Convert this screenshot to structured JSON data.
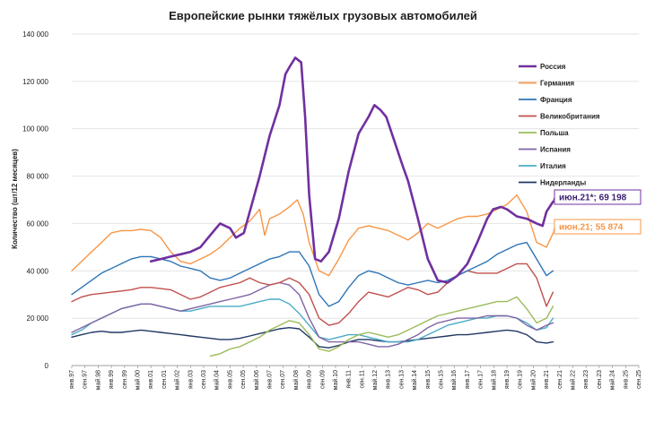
{
  "chart_data": {
    "type": "line",
    "title": "Европейские рынки тяжёлых грузовых автомобилей",
    "ylabel": "Количество  (шт/12 месяцев)",
    "xlabel": "",
    "ylim": [
      0,
      140000
    ],
    "yticks": [
      0,
      20000,
      40000,
      60000,
      80000,
      100000,
      120000,
      140000
    ],
    "ytick_labels": [
      "0",
      "20 000",
      "40 000",
      "60 000",
      "80 000",
      "100 000",
      "120 000",
      "140 000"
    ],
    "x_tick_labels": [
      "янв.97",
      "сен.97",
      "май.98",
      "янв.99",
      "сен.99",
      "май.00",
      "янв.01",
      "сен.01",
      "май.02",
      "янв.03",
      "сен.03",
      "май.04",
      "янв.05",
      "сен.05",
      "май.06",
      "янв.07",
      "сен.07",
      "май.08",
      "янв.09",
      "сен.09",
      "май.10",
      "янв.11",
      "сен.11",
      "май.12",
      "янв.13",
      "сен.13",
      "май.14",
      "янв.15",
      "сен.15",
      "май.16",
      "янв.17",
      "сен.17",
      "май.18",
      "янв.19",
      "сен.19",
      "май.20",
      "янв.21",
      "сен.21",
      "май.22",
      "янв.23",
      "сен.23",
      "май.24",
      "янв.25",
      "сен.25"
    ],
    "grid": true,
    "legend_position": "right",
    "series": [
      {
        "name": "Россия",
        "color": "#7030a0",
        "width": 2.6,
        "x": [
          2001.0,
          2001.5,
          2002.0,
          2002.5,
          2003.0,
          2003.5,
          2004.0,
          2004.5,
          2005.0,
          2005.3,
          2005.7,
          2006.0,
          2006.5,
          2007.0,
          2007.5,
          2007.8,
          2008.0,
          2008.3,
          2008.6,
          2008.8,
          2009.0,
          2009.3,
          2009.6,
          2010.0,
          2010.5,
          2011.0,
          2011.5,
          2012.0,
          2012.3,
          2012.6,
          2012.9,
          2013.3,
          2013.7,
          2014.0,
          2014.5,
          2015.0,
          2015.5,
          2016.0,
          2016.5,
          2017.0,
          2017.5,
          2018.0,
          2018.3,
          2018.7,
          2019.0,
          2019.5,
          2020.0,
          2020.5,
          2020.8,
          2021.0,
          2021.33
        ],
        "y": [
          44000,
          45000,
          46000,
          47000,
          48000,
          50000,
          55000,
          60000,
          58000,
          54000,
          56000,
          65000,
          80000,
          97000,
          110000,
          123000,
          126000,
          130000,
          128000,
          105000,
          72000,
          45000,
          44000,
          48000,
          62000,
          82000,
          98000,
          105000,
          110000,
          108000,
          105000,
          95000,
          85000,
          78000,
          62000,
          45000,
          36000,
          35000,
          38000,
          43000,
          52000,
          62000,
          66000,
          67000,
          66000,
          63000,
          62000,
          60000,
          59000,
          65000,
          69198
        ]
      },
      {
        "name": "Германия",
        "color": "#f79646",
        "width": 1.4,
        "x": [
          1997.0,
          1997.5,
          1998.0,
          1998.5,
          1999.0,
          1999.5,
          2000.0,
          2000.5,
          2001.0,
          2001.5,
          2002.0,
          2002.5,
          2003.0,
          2003.5,
          2004.0,
          2004.5,
          2005.0,
          2005.5,
          2006.0,
          2006.5,
          2006.75,
          2007.0,
          2007.5,
          2008.0,
          2008.4,
          2008.7,
          2009.0,
          2009.5,
          2010.0,
          2010.5,
          2011.0,
          2011.5,
          2012.0,
          2012.5,
          2013.0,
          2013.5,
          2014.0,
          2014.5,
          2015.0,
          2015.5,
          2016.0,
          2016.5,
          2017.0,
          2017.5,
          2018.0,
          2018.5,
          2019.0,
          2019.5,
          2020.0,
          2020.5,
          2021.0,
          2021.33
        ],
        "y": [
          40000,
          44000,
          48000,
          52000,
          56000,
          57000,
          57000,
          57500,
          57000,
          54000,
          48000,
          44000,
          43000,
          45000,
          47000,
          50000,
          54000,
          58000,
          61000,
          66000,
          55000,
          62000,
          64000,
          67000,
          70000,
          64000,
          52000,
          40000,
          38000,
          45000,
          53000,
          58000,
          59000,
          58000,
          57000,
          55000,
          53000,
          56000,
          60000,
          58000,
          60000,
          62000,
          63000,
          63000,
          64000,
          66000,
          68000,
          72000,
          65000,
          52000,
          50000,
          55874
        ]
      },
      {
        "name": "Франция",
        "color": "#2e75b6",
        "width": 1.4,
        "x": [
          1997.0,
          1997.5,
          1998.0,
          1998.5,
          1999.0,
          1999.5,
          2000.0,
          2000.5,
          2001.0,
          2001.5,
          2002.0,
          2002.5,
          2003.0,
          2003.5,
          2004.0,
          2004.5,
          2005.0,
          2005.5,
          2006.0,
          2006.5,
          2007.0,
          2007.5,
          2008.0,
          2008.5,
          2009.0,
          2009.5,
          2010.0,
          2010.5,
          2011.0,
          2011.5,
          2012.0,
          2012.5,
          2013.0,
          2013.5,
          2014.0,
          2014.5,
          2015.0,
          2015.5,
          2016.0,
          2016.5,
          2017.0,
          2017.5,
          2018.0,
          2018.5,
          2019.0,
          2019.5,
          2020.0,
          2020.5,
          2021.0,
          2021.33
        ],
        "y": [
          30000,
          33000,
          36000,
          39000,
          41000,
          43000,
          45000,
          46000,
          46000,
          45000,
          44000,
          42000,
          41000,
          40000,
          37000,
          36000,
          37000,
          39000,
          41000,
          43000,
          45000,
          46000,
          48000,
          48000,
          42000,
          30000,
          25000,
          27000,
          33000,
          38000,
          40000,
          39000,
          37000,
          35000,
          34000,
          35000,
          36000,
          35000,
          36000,
          38000,
          40000,
          42000,
          44000,
          47000,
          49000,
          51000,
          52000,
          45000,
          38000,
          40000
        ]
      },
      {
        "name": "Великобритания",
        "color": "#c0504d",
        "width": 1.4,
        "x": [
          1997.0,
          1997.5,
          1998.0,
          1998.5,
          1999.0,
          1999.5,
          2000.0,
          2000.5,
          2001.0,
          2001.5,
          2002.0,
          2002.5,
          2003.0,
          2003.5,
          2004.0,
          2004.5,
          2005.0,
          2005.5,
          2006.0,
          2006.5,
          2007.0,
          2007.5,
          2008.0,
          2008.5,
          2009.0,
          2009.5,
          2010.0,
          2010.5,
          2011.0,
          2011.5,
          2012.0,
          2012.5,
          2013.0,
          2013.5,
          2014.0,
          2014.5,
          2015.0,
          2015.5,
          2016.0,
          2016.5,
          2017.0,
          2017.5,
          2018.0,
          2018.5,
          2019.0,
          2019.5,
          2020.0,
          2020.5,
          2021.0,
          2021.33
        ],
        "y": [
          27000,
          29000,
          30000,
          30500,
          31000,
          31500,
          32000,
          33000,
          33000,
          32500,
          32000,
          30000,
          28000,
          29000,
          31000,
          33000,
          34000,
          35000,
          37000,
          35000,
          34000,
          35000,
          37000,
          35000,
          30000,
          20000,
          17000,
          18000,
          22000,
          27000,
          31000,
          30000,
          29000,
          31000,
          33000,
          32000,
          30000,
          31000,
          35000,
          38000,
          40000,
          39000,
          39000,
          39000,
          41000,
          43000,
          43000,
          37000,
          25000,
          31000
        ]
      },
      {
        "name": "Польша",
        "color": "#9bbb59",
        "width": 1.4,
        "x": [
          2004.0,
          2004.5,
          2005.0,
          2005.5,
          2006.0,
          2006.5,
          2007.0,
          2007.5,
          2008.0,
          2008.5,
          2009.0,
          2009.5,
          2010.0,
          2010.5,
          2011.0,
          2011.5,
          2012.0,
          2012.5,
          2013.0,
          2013.5,
          2014.0,
          2014.5,
          2015.0,
          2015.5,
          2016.0,
          2016.5,
          2017.0,
          2017.5,
          2018.0,
          2018.5,
          2019.0,
          2019.5,
          2020.0,
          2020.5,
          2021.0,
          2021.33
        ],
        "y": [
          4000,
          5000,
          7000,
          8000,
          10000,
          12000,
          15000,
          17000,
          19000,
          18000,
          13000,
          7000,
          6000,
          8000,
          11000,
          13000,
          14000,
          13000,
          12000,
          13000,
          15000,
          17000,
          19000,
          21000,
          22000,
          23000,
          24000,
          25000,
          26000,
          27000,
          27000,
          29000,
          24000,
          18000,
          20000,
          25000
        ]
      },
      {
        "name": "Испания",
        "color": "#8064a2",
        "width": 1.4,
        "x": [
          1997.0,
          1997.5,
          1998.0,
          1998.5,
          1999.0,
          1999.5,
          2000.0,
          2000.5,
          2001.0,
          2001.5,
          2002.0,
          2002.5,
          2003.0,
          2003.5,
          2004.0,
          2004.5,
          2005.0,
          2005.5,
          2006.0,
          2006.5,
          2007.0,
          2007.5,
          2008.0,
          2008.5,
          2009.0,
          2009.5,
          2010.0,
          2010.5,
          2011.0,
          2011.5,
          2012.0,
          2012.5,
          2013.0,
          2013.5,
          2014.0,
          2014.5,
          2015.0,
          2015.5,
          2016.0,
          2016.5,
          2017.0,
          2017.5,
          2018.0,
          2018.5,
          2019.0,
          2019.5,
          2020.0,
          2020.5,
          2021.0,
          2021.33
        ],
        "y": [
          14000,
          16000,
          18000,
          20000,
          22000,
          24000,
          25000,
          26000,
          26000,
          25000,
          24000,
          23000,
          24000,
          25000,
          26000,
          27000,
          28000,
          29000,
          30000,
          32000,
          34000,
          35000,
          34000,
          30000,
          20000,
          12000,
          10000,
          10000,
          10000,
          10000,
          9000,
          8000,
          8000,
          9000,
          11000,
          13000,
          16000,
          18000,
          19000,
          20000,
          20000,
          20000,
          21000,
          21000,
          21000,
          20000,
          17000,
          15000,
          17000,
          18000
        ]
      },
      {
        "name": "Италия",
        "color": "#4bacc6",
        "width": 1.4,
        "x": [
          1997.0,
          1997.5,
          1998.0,
          1998.5,
          1999.0,
          1999.5,
          2000.0,
          2000.5,
          2001.0,
          2001.5,
          2002.0,
          2002.5,
          2003.0,
          2003.5,
          2004.0,
          2004.5,
          2005.0,
          2005.5,
          2006.0,
          2006.5,
          2007.0,
          2007.5,
          2008.0,
          2008.5,
          2009.0,
          2009.5,
          2010.0,
          2010.5,
          2011.0,
          2011.5,
          2012.0,
          2012.5,
          2013.0,
          2013.5,
          2014.0,
          2014.5,
          2015.0,
          2015.5,
          2016.0,
          2016.5,
          2017.0,
          2017.5,
          2018.0,
          2018.5,
          2019.0,
          2019.5,
          2020.0,
          2020.5,
          2021.0,
          2021.33
        ],
        "y": [
          13000,
          15000,
          18000,
          20000,
          22000,
          24000,
          25000,
          26000,
          26000,
          25000,
          24000,
          23000,
          23000,
          24000,
          25000,
          25000,
          25000,
          25000,
          26000,
          27000,
          28000,
          28000,
          26000,
          22000,
          17000,
          12000,
          11000,
          12000,
          13000,
          13000,
          12000,
          11000,
          10000,
          10000,
          10000,
          11000,
          13000,
          15000,
          17000,
          18000,
          19000,
          20000,
          20000,
          21000,
          21000,
          20000,
          18000,
          15000,
          16000,
          20000
        ]
      },
      {
        "name": "Нидерланды",
        "color": "#1f3864",
        "width": 1.4,
        "x": [
          1997.0,
          1997.5,
          1998.0,
          1998.5,
          1999.0,
          1999.5,
          2000.0,
          2000.5,
          2001.0,
          2001.5,
          2002.0,
          2002.5,
          2003.0,
          2003.5,
          2004.0,
          2004.5,
          2005.0,
          2005.5,
          2006.0,
          2006.5,
          2007.0,
          2007.5,
          2008.0,
          2008.5,
          2009.0,
          2009.5,
          2010.0,
          2010.5,
          2011.0,
          2011.5,
          2012.0,
          2012.5,
          2013.0,
          2013.5,
          2014.0,
          2014.5,
          2015.0,
          2015.5,
          2016.0,
          2016.5,
          2017.0,
          2017.5,
          2018.0,
          2018.5,
          2019.0,
          2019.5,
          2020.0,
          2020.5,
          2021.0,
          2021.33
        ],
        "y": [
          12000,
          13000,
          14000,
          14500,
          14000,
          14000,
          14500,
          15000,
          14500,
          14000,
          13500,
          13000,
          12500,
          12000,
          11500,
          11000,
          11000,
          11500,
          12500,
          13500,
          14500,
          15500,
          16000,
          15500,
          12000,
          8000,
          7500,
          8500,
          10000,
          11000,
          11000,
          10500,
          10000,
          10000,
          10500,
          11000,
          11500,
          12000,
          12500,
          13000,
          13000,
          13500,
          14000,
          14500,
          15000,
          14500,
          13000,
          10000,
          9500,
          10000
        ]
      }
    ],
    "callouts": [
      {
        "series": "Россия",
        "label": "июн.21*;  69 198",
        "x": 2021.33,
        "y": 69198
      },
      {
        "series": "Германия",
        "label": "июн.21;  55 874",
        "x": 2021.33,
        "y": 55874
      }
    ]
  }
}
